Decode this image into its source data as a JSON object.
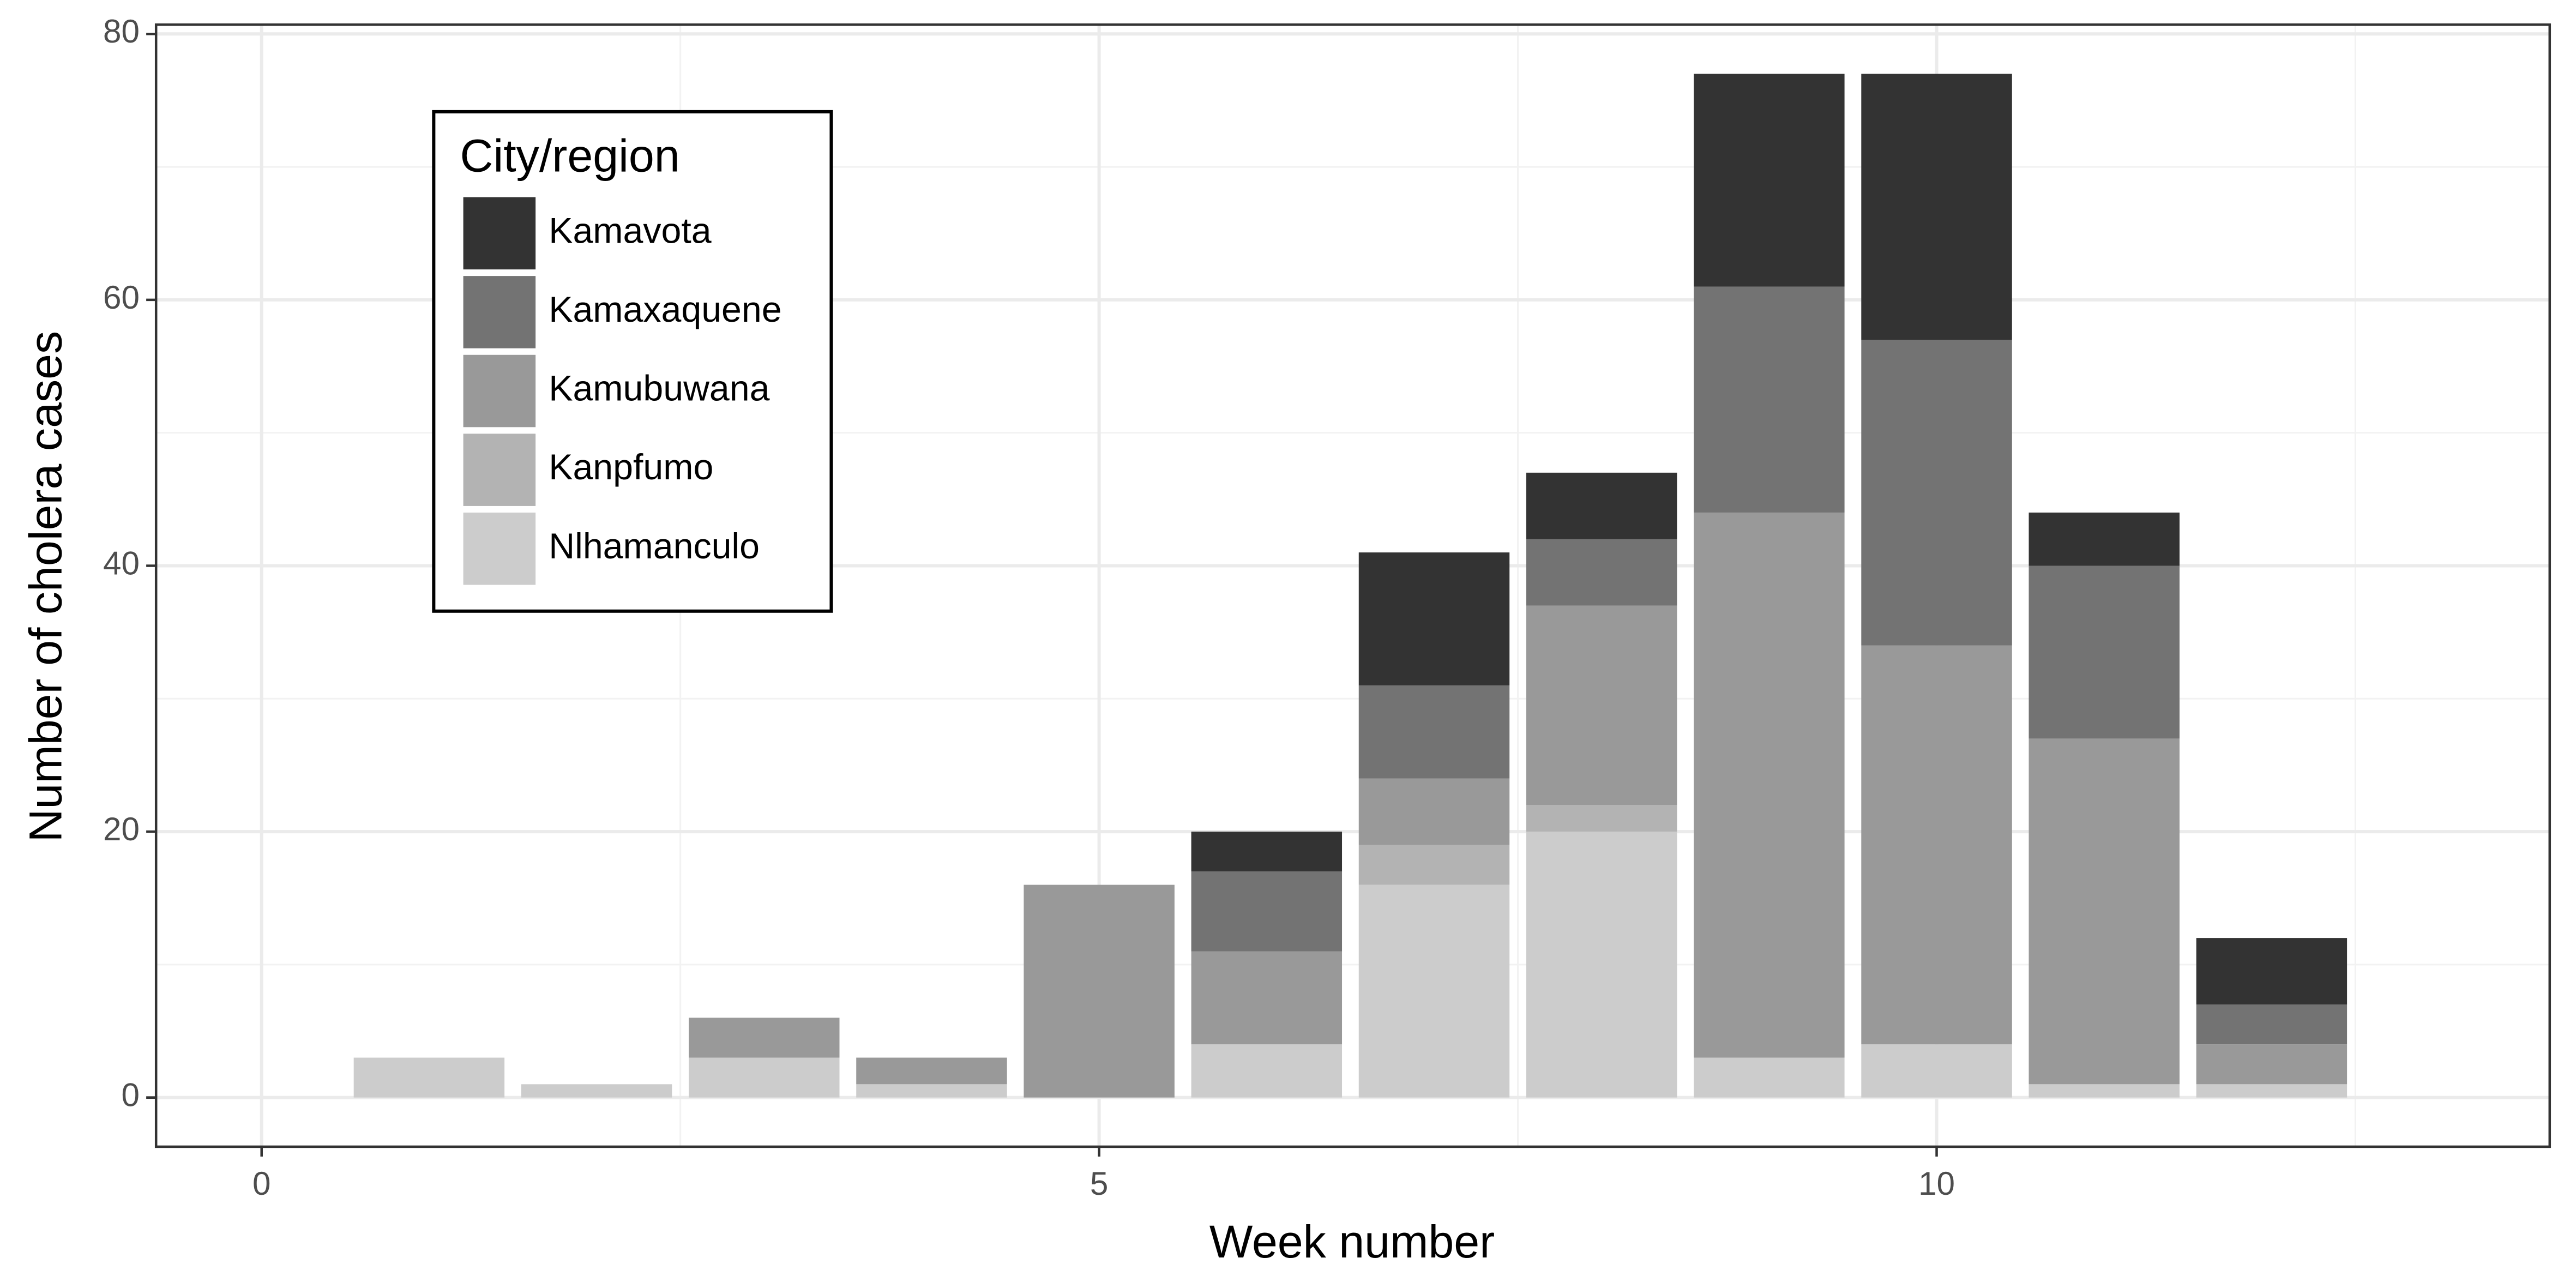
{
  "chart_data": {
    "type": "stacked_bar",
    "x_label": "Week number",
    "y_label": "Number of cholera cases",
    "legend_title": "City/region",
    "legend_position": "top-left",
    "grid": true,
    "x": [
      1,
      2,
      3,
      4,
      5,
      6,
      7,
      8,
      9,
      10,
      11,
      12
    ],
    "series": [
      {
        "name": "Kamavota",
        "color": "#333333",
        "values": [
          0,
          0,
          0,
          0,
          0,
          3,
          10,
          5,
          16,
          20,
          4,
          5
        ]
      },
      {
        "name": "Kamaxaquene",
        "color": "#737373",
        "values": [
          0,
          0,
          0,
          0,
          0,
          6,
          7,
          5,
          17,
          23,
          13,
          3
        ]
      },
      {
        "name": "Kamubuwana",
        "color": "#999999",
        "values": [
          0,
          0,
          3,
          2,
          16,
          7,
          5,
          15,
          41,
          30,
          26,
          3
        ]
      },
      {
        "name": "Kanpfumo",
        "color": "#b3b3b3",
        "values": [
          0,
          0,
          0,
          0,
          0,
          0,
          3,
          2,
          0,
          0,
          0,
          0
        ]
      },
      {
        "name": "Nlhamanculo",
        "color": "#cccccc",
        "values": [
          3,
          1,
          3,
          1,
          0,
          4,
          16,
          20,
          3,
          4,
          1,
          1
        ]
      }
    ],
    "xlim": [
      -0.63,
      13.66
    ],
    "ylim": [
      -3.7,
      80.7
    ],
    "xticks": [
      0,
      5,
      10
    ],
    "yticks": [
      0,
      20,
      40,
      60,
      80
    ],
    "minor_xticks": [
      2.5,
      7.5,
      12.5
    ],
    "minor_yticks": [
      10,
      30,
      50,
      70
    ]
  }
}
